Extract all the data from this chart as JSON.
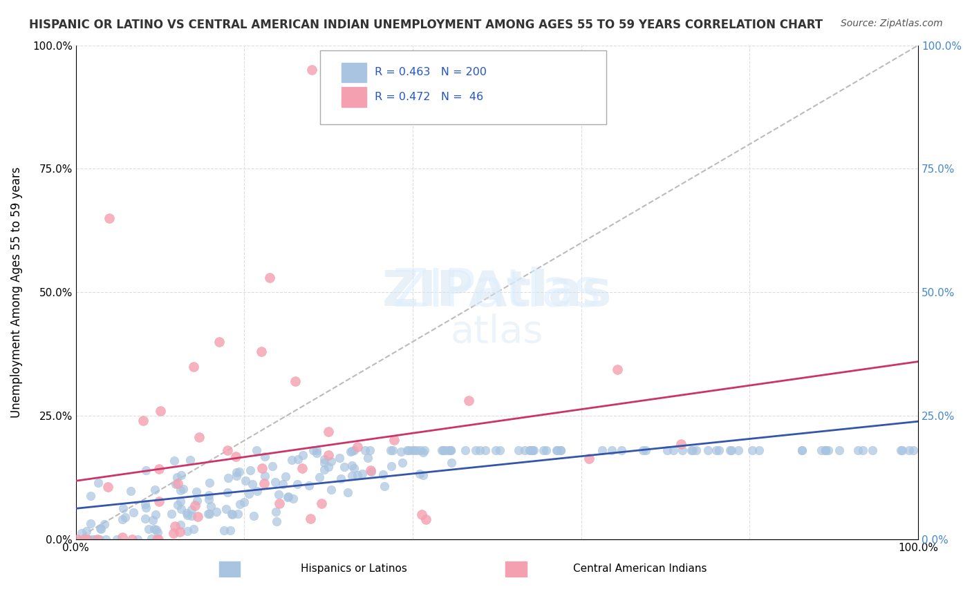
{
  "title": "HISPANIC OR LATINO VS CENTRAL AMERICAN INDIAN UNEMPLOYMENT AMONG AGES 55 TO 59 YEARS CORRELATION CHART",
  "source": "Source: ZipAtlas.com",
  "ylabel": "Unemployment Among Ages 55 to 59 years",
  "xlabel": "",
  "blue_R": 0.463,
  "blue_N": 200,
  "pink_R": 0.472,
  "pink_N": 46,
  "blue_color": "#a8c4e0",
  "blue_line_color": "#3355aa",
  "pink_color": "#f4a0b0",
  "pink_line_color": "#cc3366",
  "diag_color": "#bbbbbb",
  "title_color": "#333333",
  "source_color": "#555555",
  "legend_R_color": "#2255cc",
  "watermark_color": "#d0e4f0",
  "grid_color": "#dddddd",
  "right_tick_color": "#4488cc",
  "ytick_labels": [
    "0.0%",
    "25.0%",
    "50.0%",
    "75.0%",
    "100.0%"
  ],
  "ytick_values": [
    0.0,
    0.25,
    0.5,
    0.75,
    1.0
  ],
  "xtick_labels": [
    "0.0%",
    "",
    "",
    "",
    "",
    "100.0%"
  ],
  "blue_seed": 42,
  "pink_seed": 7,
  "xlim": [
    0.0,
    1.0
  ],
  "ylim": [
    0.0,
    1.0
  ]
}
